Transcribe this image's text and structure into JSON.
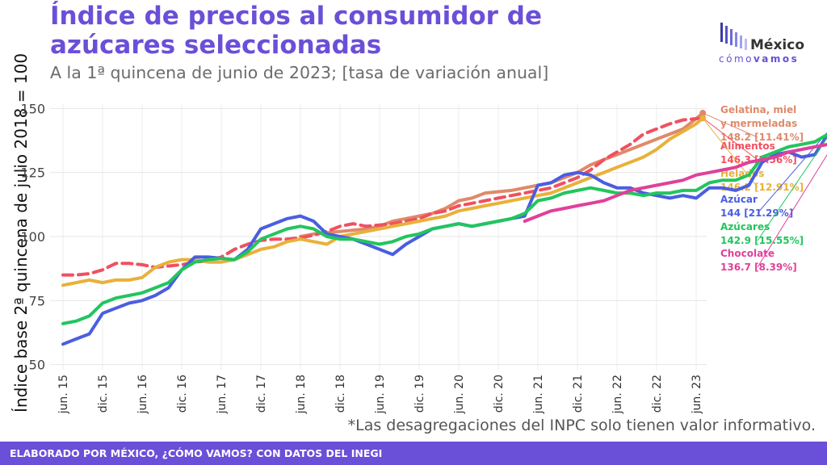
{
  "header": {
    "title": "Índice de precios al consumidor de azúcares seleccionadas",
    "subtitle": "A la 1ª quincena de junio de 2023; [tasa de variación anual]"
  },
  "logo": {
    "name": "México",
    "sub_a": "cómo",
    "sub_b": "vamos"
  },
  "footnote": "*Las desagregaciones del INPC solo tienen valor informativo.",
  "footer": {
    "text": "ELABORADO POR MÉXICO, ¿CÓMO VAMOS? CON DATOS DEL INEGI"
  },
  "chart_data": {
    "type": "line",
    "title": "Índice de precios al consumidor de azúcares seleccionadas",
    "ylabel": "Índice base 2ª quincena de julio 2018 = 100",
    "xlabel": "",
    "ylim": [
      48,
      152
    ],
    "yticks": [
      50,
      75,
      100,
      125,
      150
    ],
    "xticks": [
      "jun. 15",
      "dic. 15",
      "jun. 16",
      "dic. 16",
      "jun. 17",
      "dic. 17",
      "jun. 18",
      "dic. 18",
      "jun. 19",
      "dic. 19",
      "jun. 20",
      "dic. 20",
      "jun. 21",
      "dic. 21",
      "jun. 22",
      "dic. 22",
      "jun. 23"
    ],
    "grid": true,
    "x_months_from": "jun. 15",
    "series": [
      {
        "name": "Gelatina, miel y mermeladas",
        "label_lines": [
          "Gelatina, miel",
          "y mermeladas"
        ],
        "end_label": "148.2 [11.41%]",
        "color": "#e0896a",
        "dashed": false,
        "points": [
          [
            36,
            100
          ],
          [
            38,
            101
          ],
          [
            40,
            101.5
          ],
          [
            42,
            102
          ],
          [
            44,
            102.5
          ],
          [
            46,
            103
          ],
          [
            48,
            104
          ],
          [
            50,
            106
          ],
          [
            52,
            107
          ],
          [
            54,
            108
          ],
          [
            56,
            109
          ],
          [
            58,
            111
          ],
          [
            60,
            114
          ],
          [
            62,
            115
          ],
          [
            64,
            117
          ],
          [
            66,
            117.5
          ],
          [
            68,
            118
          ],
          [
            70,
            119
          ],
          [
            72,
            120
          ],
          [
            74,
            121
          ],
          [
            76,
            123
          ],
          [
            78,
            125
          ],
          [
            80,
            128
          ],
          [
            82,
            130
          ],
          [
            84,
            132
          ],
          [
            86,
            134
          ],
          [
            88,
            136
          ],
          [
            90,
            138
          ],
          [
            92,
            140
          ],
          [
            94,
            142
          ],
          [
            95,
            144
          ],
          [
            96,
            146
          ],
          [
            97,
            148.2
          ]
        ]
      },
      {
        "name": "Alimentos",
        "end_label": "146.3 [7.56%]",
        "color": "#f05060",
        "dashed": true,
        "points": [
          [
            0,
            85
          ],
          [
            2,
            85
          ],
          [
            4,
            85.5
          ],
          [
            6,
            87
          ],
          [
            8,
            89.5
          ],
          [
            10,
            89.5
          ],
          [
            12,
            89
          ],
          [
            14,
            88
          ],
          [
            16,
            88.5
          ],
          [
            18,
            89
          ],
          [
            20,
            90
          ],
          [
            22,
            90.5
          ],
          [
            24,
            92
          ],
          [
            26,
            95
          ],
          [
            28,
            97
          ],
          [
            30,
            98.5
          ],
          [
            32,
            99
          ],
          [
            34,
            99
          ],
          [
            36,
            99.5
          ],
          [
            38,
            100.5
          ],
          [
            40,
            102
          ],
          [
            42,
            104
          ],
          [
            44,
            105
          ],
          [
            46,
            104
          ],
          [
            48,
            104.5
          ],
          [
            50,
            105
          ],
          [
            52,
            106
          ],
          [
            54,
            107
          ],
          [
            56,
            109
          ],
          [
            58,
            110
          ],
          [
            60,
            112
          ],
          [
            62,
            113
          ],
          [
            64,
            114
          ],
          [
            66,
            115
          ],
          [
            68,
            116
          ],
          [
            70,
            117
          ],
          [
            72,
            118
          ],
          [
            74,
            119
          ],
          [
            76,
            121
          ],
          [
            78,
            123
          ],
          [
            80,
            126
          ],
          [
            82,
            130
          ],
          [
            84,
            133
          ],
          [
            86,
            136
          ],
          [
            88,
            140
          ],
          [
            90,
            142
          ],
          [
            92,
            144
          ],
          [
            94,
            145.5
          ],
          [
            96,
            146
          ],
          [
            97,
            146.3
          ]
        ]
      },
      {
        "name": "Helados",
        "end_label": "146.2 [12.91%]",
        "color": "#e8b13a",
        "dashed": false,
        "points": [
          [
            0,
            81
          ],
          [
            2,
            82
          ],
          [
            4,
            83
          ],
          [
            6,
            82
          ],
          [
            8,
            83
          ],
          [
            10,
            83
          ],
          [
            12,
            84
          ],
          [
            14,
            88
          ],
          [
            16,
            90
          ],
          [
            18,
            91
          ],
          [
            20,
            91
          ],
          [
            22,
            90
          ],
          [
            24,
            90
          ],
          [
            26,
            91
          ],
          [
            28,
            93
          ],
          [
            30,
            95
          ],
          [
            32,
            96
          ],
          [
            34,
            98
          ],
          [
            36,
            99
          ],
          [
            38,
            98
          ],
          [
            40,
            97
          ],
          [
            42,
            100
          ],
          [
            44,
            101
          ],
          [
            46,
            102
          ],
          [
            48,
            103
          ],
          [
            50,
            104
          ],
          [
            52,
            105
          ],
          [
            54,
            106
          ],
          [
            56,
            107
          ],
          [
            58,
            108
          ],
          [
            60,
            110
          ],
          [
            62,
            111
          ],
          [
            64,
            112
          ],
          [
            66,
            113
          ],
          [
            68,
            114
          ],
          [
            70,
            115
          ],
          [
            72,
            116
          ],
          [
            74,
            117
          ],
          [
            76,
            119
          ],
          [
            78,
            121
          ],
          [
            80,
            123
          ],
          [
            82,
            125
          ],
          [
            84,
            127
          ],
          [
            86,
            129
          ],
          [
            88,
            131
          ],
          [
            90,
            134
          ],
          [
            92,
            138
          ],
          [
            94,
            141
          ],
          [
            96,
            144
          ],
          [
            97,
            146.2
          ]
        ]
      },
      {
        "name": "Azúcar",
        "end_label": "144 [21.29%]",
        "color": "#4a5ee0",
        "dashed": false,
        "points": [
          [
            0,
            58
          ],
          [
            2,
            60
          ],
          [
            4,
            62
          ],
          [
            6,
            70
          ],
          [
            8,
            72
          ],
          [
            10,
            74
          ],
          [
            12,
            75
          ],
          [
            14,
            77
          ],
          [
            16,
            80
          ],
          [
            18,
            87
          ],
          [
            20,
            92
          ],
          [
            22,
            92
          ],
          [
            24,
            91.5
          ],
          [
            26,
            91
          ],
          [
            28,
            95
          ],
          [
            30,
            103
          ],
          [
            32,
            105
          ],
          [
            34,
            107
          ],
          [
            36,
            108
          ],
          [
            38,
            106
          ],
          [
            40,
            101
          ],
          [
            42,
            100
          ],
          [
            44,
            99
          ],
          [
            46,
            97
          ],
          [
            48,
            95
          ],
          [
            50,
            93
          ],
          [
            52,
            97
          ],
          [
            54,
            100
          ],
          [
            56,
            103
          ],
          [
            58,
            104
          ],
          [
            60,
            105
          ],
          [
            62,
            104
          ],
          [
            64,
            105
          ],
          [
            66,
            106
          ],
          [
            68,
            107
          ],
          [
            70,
            108
          ],
          [
            72,
            120
          ],
          [
            74,
            121
          ],
          [
            76,
            124
          ],
          [
            78,
            125
          ],
          [
            80,
            124
          ],
          [
            82,
            121
          ],
          [
            84,
            119
          ],
          [
            86,
            119
          ],
          [
            88,
            117
          ],
          [
            90,
            116
          ],
          [
            92,
            115
          ],
          [
            94,
            116
          ],
          [
            96,
            115
          ],
          [
            98,
            119
          ],
          [
            100,
            119
          ],
          [
            102,
            118
          ],
          [
            104,
            120
          ],
          [
            106,
            129
          ],
          [
            108,
            132
          ],
          [
            110,
            133
          ],
          [
            112,
            131
          ],
          [
            114,
            132
          ],
          [
            116,
            140
          ],
          [
            117,
            144
          ]
        ]
      },
      {
        "name": "Azúcares",
        "end_label": "142.9 [15.55%]",
        "color": "#22c55e",
        "dashed": false,
        "points": [
          [
            0,
            66
          ],
          [
            2,
            67
          ],
          [
            4,
            69
          ],
          [
            6,
            74
          ],
          [
            8,
            76
          ],
          [
            10,
            77
          ],
          [
            12,
            78
          ],
          [
            14,
            80
          ],
          [
            16,
            82
          ],
          [
            18,
            87
          ],
          [
            20,
            90
          ],
          [
            22,
            91
          ],
          [
            24,
            91.5
          ],
          [
            26,
            91
          ],
          [
            28,
            94
          ],
          [
            30,
            99
          ],
          [
            32,
            101
          ],
          [
            34,
            103
          ],
          [
            36,
            104
          ],
          [
            38,
            103
          ],
          [
            40,
            100
          ],
          [
            42,
            99
          ],
          [
            44,
            99
          ],
          [
            46,
            98
          ],
          [
            48,
            97
          ],
          [
            50,
            98
          ],
          [
            52,
            100
          ],
          [
            54,
            101
          ],
          [
            56,
            103
          ],
          [
            58,
            104
          ],
          [
            60,
            105
          ],
          [
            62,
            104
          ],
          [
            64,
            105
          ],
          [
            66,
            106
          ],
          [
            68,
            107
          ],
          [
            70,
            109
          ],
          [
            72,
            114
          ],
          [
            74,
            115
          ],
          [
            76,
            117
          ],
          [
            78,
            118
          ],
          [
            80,
            119
          ],
          [
            82,
            118
          ],
          [
            84,
            117
          ],
          [
            86,
            117
          ],
          [
            88,
            116
          ],
          [
            90,
            117
          ],
          [
            92,
            117
          ],
          [
            94,
            118
          ],
          [
            96,
            118
          ],
          [
            98,
            121
          ],
          [
            100,
            122
          ],
          [
            102,
            122
          ],
          [
            104,
            124
          ],
          [
            106,
            131
          ],
          [
            108,
            133
          ],
          [
            110,
            135
          ],
          [
            112,
            136
          ],
          [
            114,
            137
          ],
          [
            116,
            140
          ],
          [
            117,
            142.9
          ]
        ]
      },
      {
        "name": "Chocolate",
        "end_label": "136.7 [8.39%]",
        "color": "#e0409a",
        "dashed": false,
        "points": [
          [
            70,
            106
          ],
          [
            72,
            108
          ],
          [
            74,
            110
          ],
          [
            76,
            111
          ],
          [
            78,
            112
          ],
          [
            80,
            113
          ],
          [
            82,
            114
          ],
          [
            84,
            116
          ],
          [
            86,
            118
          ],
          [
            88,
            119
          ],
          [
            90,
            120
          ],
          [
            92,
            121
          ],
          [
            94,
            122
          ],
          [
            96,
            124
          ],
          [
            98,
            125
          ],
          [
            100,
            126
          ],
          [
            102,
            127
          ],
          [
            104,
            129
          ],
          [
            106,
            130
          ],
          [
            108,
            131
          ],
          [
            110,
            133
          ],
          [
            112,
            134
          ],
          [
            114,
            135
          ],
          [
            116,
            136
          ],
          [
            117,
            136.7
          ]
        ]
      }
    ]
  }
}
